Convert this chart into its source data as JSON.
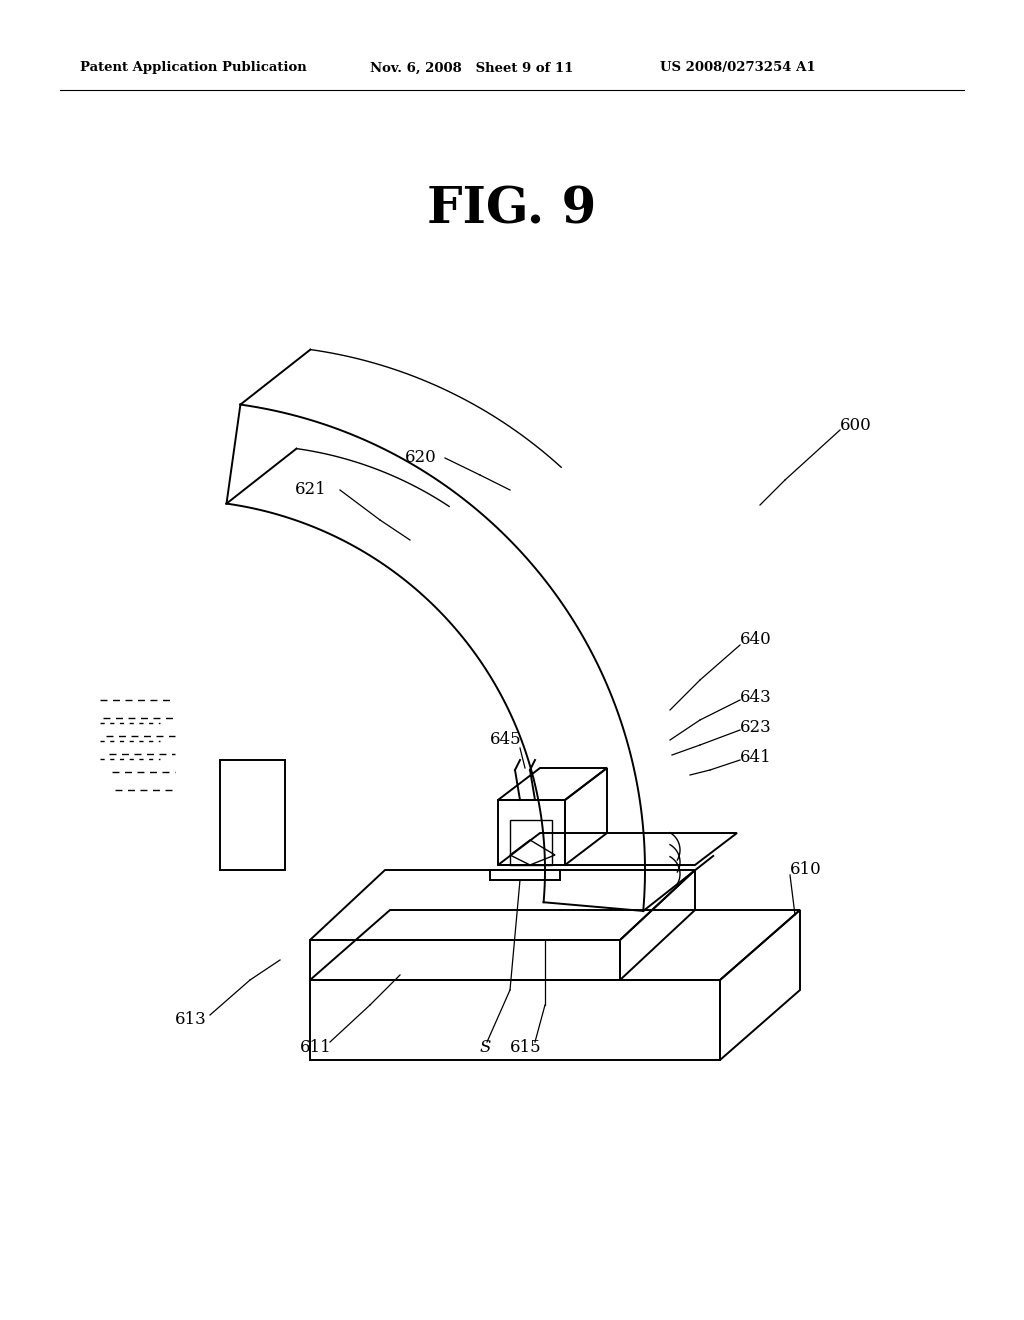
{
  "bg_color": "#ffffff",
  "title": "FIG. 9",
  "header_left": "Patent Application Publication",
  "header_mid": "Nov. 6, 2008   Sheet 9 of 11",
  "header_right": "US 2008/0273254 A1"
}
